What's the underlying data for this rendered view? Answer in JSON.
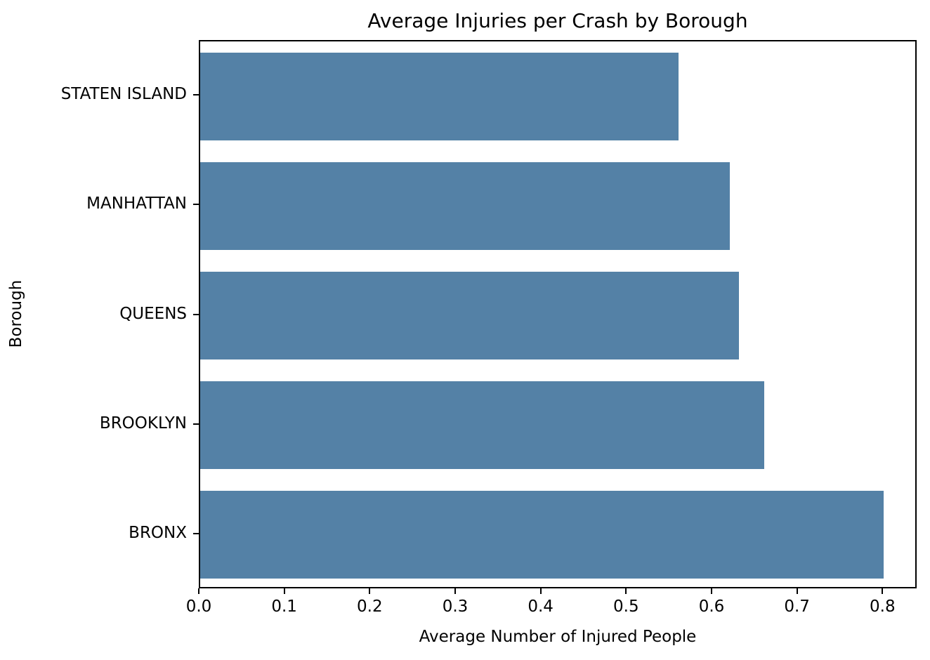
{
  "chart_data": {
    "type": "bar",
    "orientation": "horizontal",
    "title": "Average Injuries per Crash by Borough",
    "xlabel": "Average Number of Injured People",
    "ylabel": "Borough",
    "categories": [
      "STATEN ISLAND",
      "MANHATTAN",
      "QUEENS",
      "BROOKLYN",
      "BRONX"
    ],
    "values": [
      0.56,
      0.62,
      0.63,
      0.66,
      0.8
    ],
    "xlim": [
      0,
      0.84
    ],
    "xtick_values": [
      0.0,
      0.1,
      0.2,
      0.3,
      0.4,
      0.5,
      0.6,
      0.7,
      0.8
    ],
    "xtick_labels": [
      "0.0",
      "0.1",
      "0.2",
      "0.3",
      "0.4",
      "0.5",
      "0.6",
      "0.7",
      "0.8"
    ],
    "bar_color": "#5481A6",
    "bar_fraction": 0.8,
    "grid": false,
    "legend_position": "none",
    "background_color": "#ffffff",
    "spine_color": "#000000"
  }
}
